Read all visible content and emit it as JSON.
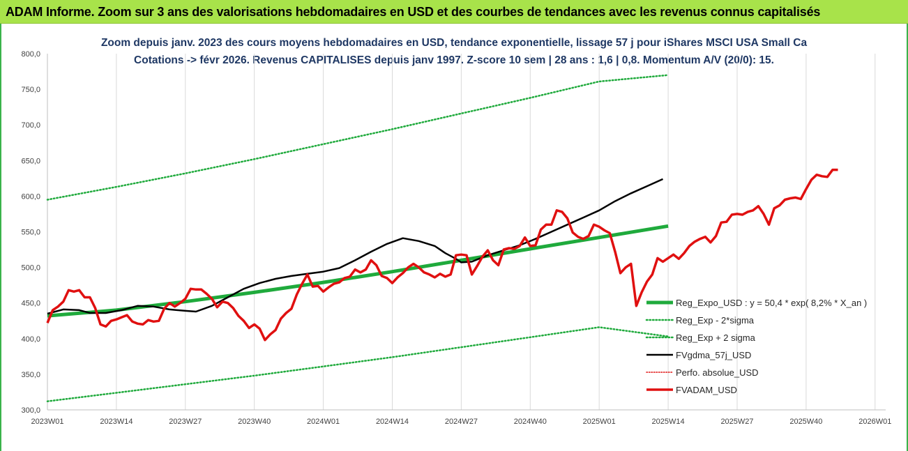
{
  "header": {
    "title": "ADAM Informe. Zoom sur 3 ans des valorisations hebdomadaires en USD et des courbes de tendances avec les revenus connus capitalisés"
  },
  "colors": {
    "header_bg": "#a8e34a",
    "trend": "#1faa3c",
    "sigma": "#1faa3c",
    "smooth": "#000000",
    "perf": "#e01010",
    "price": "#e01010",
    "title_text": "#1f3864",
    "axis_text": "#404040"
  },
  "chart_data": {
    "type": "line",
    "title_lines": [
      "Zoom depuis janv. 2023 des cours moyens hebdomadaires en USD, tendance exponentielle, lissage 57 j pour iShares MSCI USA Small Ca",
      "Cotations -> févr 2026. Revenus CAPITALISES depuis janv 1997. Z-score 10 sem | 28 ans : 1,6 | 0,8. Momentum A/V (20/0): 15."
    ],
    "x_ticks": [
      "2023W01",
      "2023W14",
      "2023W27",
      "2023W40",
      "2024W01",
      "2024W14",
      "2024W27",
      "2024W40",
      "2025W01",
      "2025W14",
      "2025W27",
      "2025W40",
      "2026W01"
    ],
    "x_range_weeks": [
      0,
      158
    ],
    "ylim": [
      300,
      800
    ],
    "y_ticks": [
      "300,0",
      "350,0",
      "400,0",
      "450,0",
      "500,0",
      "550,0",
      "600,0",
      "650,0",
      "700,0",
      "750,0",
      "800,0"
    ],
    "grid_x": true,
    "grid_y": false,
    "legend_position": "bottom-right",
    "series": [
      {
        "key": "trend",
        "name": "Reg_Expo_USD : y = 50,4 * exp( 8,2% *  X_an )",
        "style": "thick",
        "points": [
          [
            0,
            432
          ],
          [
            26,
            440
          ],
          [
            52,
            452
          ],
          [
            78,
            465
          ],
          [
            104,
            479
          ],
          [
            130,
            494
          ],
          [
            156,
            510
          ],
          [
            182,
            526
          ],
          [
            208,
            542
          ],
          [
            234,
            558
          ]
        ]
      },
      {
        "key": "sigma_low",
        "name": "Reg_Exp - 2*sigma",
        "style": "dotted",
        "points": [
          [
            0,
            312
          ],
          [
            26,
            324
          ],
          [
            52,
            336
          ],
          [
            78,
            348
          ],
          [
            104,
            361
          ],
          [
            130,
            374
          ],
          [
            156,
            388
          ],
          [
            182,
            402
          ],
          [
            208,
            416
          ],
          [
            234,
            403
          ]
        ]
      },
      {
        "key": "sigma_high",
        "name": "Reg_Exp + 2 sigma",
        "style": "dotted",
        "points": [
          [
            0,
            595
          ],
          [
            26,
            613
          ],
          [
            52,
            632
          ],
          [
            78,
            652
          ],
          [
            104,
            673
          ],
          [
            130,
            694
          ],
          [
            156,
            716
          ],
          [
            182,
            738
          ],
          [
            208,
            761
          ],
          [
            234,
            770
          ]
        ]
      },
      {
        "key": "smooth",
        "name": "FVgdma_57j_USD",
        "style": "solid",
        "points": [
          [
            0,
            435
          ],
          [
            6,
            441
          ],
          [
            12,
            440
          ],
          [
            16,
            436
          ],
          [
            22,
            436
          ],
          [
            28,
            440
          ],
          [
            34,
            446
          ],
          [
            40,
            445
          ],
          [
            46,
            441
          ],
          [
            52,
            439
          ],
          [
            56,
            438
          ],
          [
            62,
            446
          ],
          [
            68,
            458
          ],
          [
            74,
            470
          ],
          [
            80,
            478
          ],
          [
            86,
            484
          ],
          [
            92,
            488
          ],
          [
            98,
            491
          ],
          [
            104,
            494
          ],
          [
            110,
            499
          ],
          [
            116,
            510
          ],
          [
            122,
            522
          ],
          [
            128,
            533
          ],
          [
            134,
            541
          ],
          [
            140,
            537
          ],
          [
            146,
            530
          ],
          [
            150,
            520
          ],
          [
            154,
            512
          ],
          [
            156,
            507
          ],
          [
            160,
            508
          ],
          [
            166,
            517
          ],
          [
            172,
            524
          ],
          [
            178,
            531
          ],
          [
            184,
            540
          ],
          [
            190,
            550
          ],
          [
            196,
            560
          ],
          [
            202,
            570
          ],
          [
            208,
            580
          ],
          [
            214,
            593
          ],
          [
            220,
            604
          ],
          [
            226,
            614
          ],
          [
            232,
            624
          ]
        ]
      },
      {
        "key": "perf",
        "name": "Perfo. absolue_USD",
        "style": "dotted-thin",
        "points": []
      },
      {
        "key": "price",
        "name": "FVADAM_USD",
        "style": "thick",
        "points": [
          [
            0,
            422
          ],
          [
            2,
            440
          ],
          [
            4,
            445
          ],
          [
            6,
            452
          ],
          [
            8,
            468
          ],
          [
            10,
            466
          ],
          [
            12,
            468
          ],
          [
            14,
            458
          ],
          [
            16,
            458
          ],
          [
            18,
            443
          ],
          [
            20,
            420
          ],
          [
            22,
            417
          ],
          [
            24,
            425
          ],
          [
            26,
            427
          ],
          [
            28,
            430
          ],
          [
            30,
            433
          ],
          [
            32,
            424
          ],
          [
            34,
            421
          ],
          [
            36,
            420
          ],
          [
            38,
            426
          ],
          [
            40,
            424
          ],
          [
            42,
            425
          ],
          [
            44,
            442
          ],
          [
            46,
            450
          ],
          [
            48,
            445
          ],
          [
            50,
            450
          ],
          [
            52,
            456
          ],
          [
            54,
            470
          ],
          [
            56,
            469
          ],
          [
            58,
            469
          ],
          [
            60,
            463
          ],
          [
            62,
            456
          ],
          [
            64,
            444
          ],
          [
            66,
            452
          ],
          [
            68,
            450
          ],
          [
            70,
            443
          ],
          [
            72,
            432
          ],
          [
            74,
            425
          ],
          [
            76,
            415
          ],
          [
            78,
            420
          ],
          [
            80,
            414
          ],
          [
            82,
            398
          ],
          [
            84,
            406
          ],
          [
            86,
            412
          ],
          [
            88,
            428
          ],
          [
            90,
            436
          ],
          [
            92,
            442
          ],
          [
            94,
            462
          ],
          [
            96,
            477
          ],
          [
            98,
            490
          ],
          [
            100,
            473
          ],
          [
            102,
            474
          ],
          [
            104,
            466
          ],
          [
            106,
            472
          ],
          [
            108,
            477
          ],
          [
            110,
            479
          ],
          [
            112,
            485
          ],
          [
            114,
            487
          ],
          [
            116,
            497
          ],
          [
            118,
            493
          ],
          [
            120,
            497
          ],
          [
            122,
            510
          ],
          [
            124,
            503
          ],
          [
            126,
            488
          ],
          [
            128,
            485
          ],
          [
            130,
            478
          ],
          [
            132,
            486
          ],
          [
            134,
            492
          ],
          [
            136,
            500
          ],
          [
            138,
            505
          ],
          [
            140,
            500
          ],
          [
            142,
            493
          ],
          [
            144,
            490
          ],
          [
            146,
            486
          ],
          [
            148,
            491
          ],
          [
            150,
            487
          ],
          [
            152,
            490
          ],
          [
            154,
            517
          ],
          [
            156,
            518
          ],
          [
            158,
            517
          ],
          [
            160,
            490
          ],
          [
            162,
            502
          ],
          [
            164,
            515
          ],
          [
            166,
            524
          ],
          [
            168,
            510
          ],
          [
            170,
            503
          ],
          [
            172,
            525
          ],
          [
            174,
            527
          ],
          [
            176,
            526
          ],
          [
            178,
            530
          ],
          [
            180,
            542
          ],
          [
            182,
            530
          ],
          [
            184,
            531
          ],
          [
            186,
            553
          ],
          [
            188,
            560
          ],
          [
            190,
            560
          ],
          [
            192,
            580
          ],
          [
            194,
            578
          ],
          [
            196,
            569
          ],
          [
            198,
            549
          ],
          [
            200,
            543
          ],
          [
            202,
            540
          ],
          [
            204,
            544
          ],
          [
            206,
            560
          ],
          [
            208,
            557
          ],
          [
            210,
            552
          ],
          [
            212,
            548
          ],
          [
            214,
            522
          ],
          [
            216,
            492
          ],
          [
            218,
            500
          ],
          [
            220,
            505
          ],
          [
            222,
            446
          ],
          [
            224,
            465
          ],
          [
            226,
            480
          ],
          [
            228,
            490
          ],
          [
            230,
            513
          ],
          [
            232,
            508
          ],
          [
            234,
            513
          ],
          [
            236,
            518
          ],
          [
            238,
            512
          ],
          [
            240,
            520
          ],
          [
            242,
            530
          ],
          [
            244,
            536
          ],
          [
            246,
            540
          ],
          [
            248,
            543
          ],
          [
            250,
            535
          ],
          [
            252,
            544
          ],
          [
            254,
            563
          ],
          [
            256,
            564
          ],
          [
            258,
            574
          ],
          [
            260,
            575
          ],
          [
            262,
            574
          ],
          [
            264,
            578
          ],
          [
            266,
            580
          ],
          [
            268,
            586
          ],
          [
            270,
            575
          ],
          [
            272,
            560
          ],
          [
            274,
            583
          ],
          [
            276,
            587
          ],
          [
            278,
            595
          ],
          [
            280,
            597
          ],
          [
            282,
            598
          ],
          [
            284,
            596
          ],
          [
            286,
            610
          ],
          [
            288,
            623
          ],
          [
            290,
            630
          ],
          [
            292,
            628
          ],
          [
            294,
            627
          ],
          [
            296,
            637
          ],
          [
            298,
            637
          ]
        ]
      }
    ]
  }
}
